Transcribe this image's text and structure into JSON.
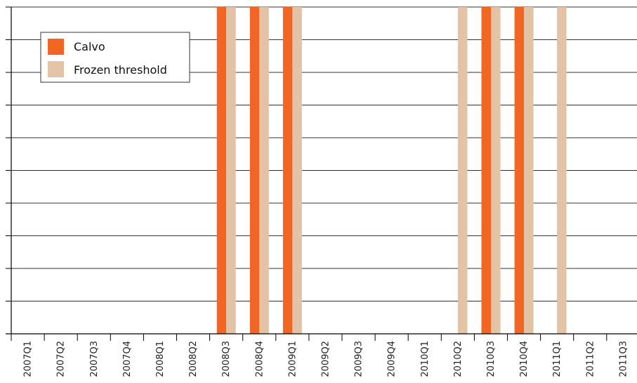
{
  "colors": {
    "calvo": "#F26522",
    "frozen": "#E3C3A5",
    "grid": "#333333",
    "axis": "#000000"
  },
  "chart_data": {
    "type": "bar",
    "categories": [
      "2007Q1",
      "2007Q2",
      "2007Q3",
      "2007Q4",
      "2008Q1",
      "2008Q2",
      "2008Q3",
      "2008Q4",
      "2009Q1",
      "2009Q2",
      "2009Q3",
      "2009Q4",
      "2010Q1",
      "2010Q2",
      "2010Q3",
      "2010Q4",
      "2011Q1",
      "2011Q2",
      "2011Q3"
    ],
    "series": [
      {
        "name": "Calvo",
        "values": [
          0,
          0,
          0,
          0,
          0,
          0,
          1,
          1,
          1,
          0,
          0,
          0,
          0,
          0,
          1,
          1,
          0,
          0,
          0
        ]
      },
      {
        "name": "Frozen threshold",
        "values": [
          0,
          0,
          0,
          0,
          0,
          0,
          1,
          1,
          1,
          0,
          0,
          0,
          0,
          1,
          1,
          1,
          1,
          0,
          0
        ]
      }
    ],
    "title": "",
    "xlabel": "",
    "ylabel": "",
    "ylim": [
      0,
      1
    ],
    "grid": true,
    "legend_position": "top-left"
  }
}
